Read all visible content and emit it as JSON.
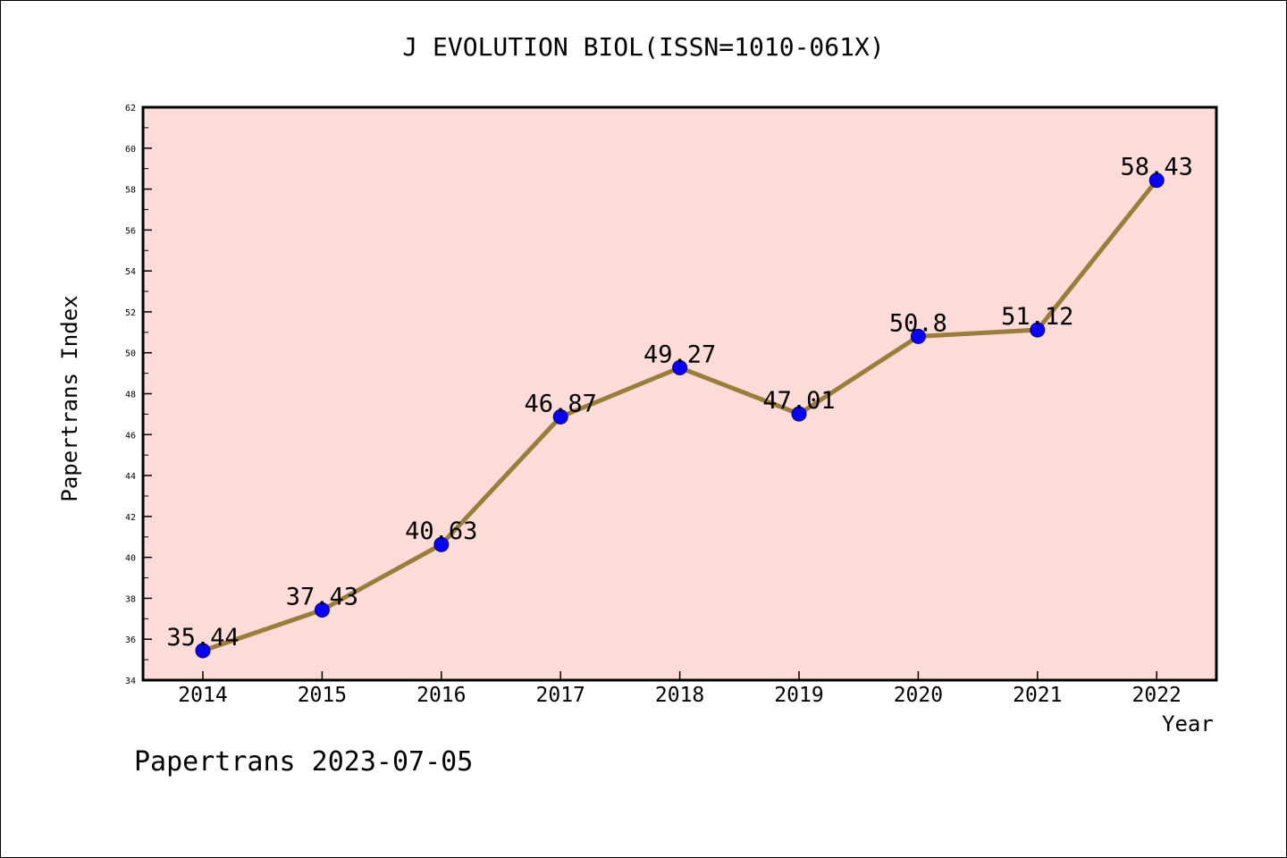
{
  "colors": {
    "plot_background": "#fddbd8",
    "line": "#9a7d3a",
    "marker": "#0a00f5",
    "axis": "#000000"
  },
  "chart_data": {
    "type": "line",
    "title": "J EVOLUTION BIOL(ISSN=1010-061X)",
    "xlabel": "Year",
    "ylabel": "Papertrans Index",
    "categories": [
      "2014",
      "2015",
      "2016",
      "2017",
      "2018",
      "2019",
      "2020",
      "2021",
      "2022"
    ],
    "series": [
      {
        "values": [
          35.44,
          37.43,
          40.63,
          46.87,
          49.27,
          47.01,
          50.8,
          51.12,
          58.43
        ],
        "labels": [
          "35.44",
          "37.43",
          "40.63",
          "46.87",
          "49.27",
          "47.01",
          "50.8",
          "51.12",
          "58.43"
        ]
      }
    ],
    "ylim": [
      34,
      62
    ],
    "yticks": [
      34,
      36,
      38,
      40,
      42,
      44,
      46,
      48,
      50,
      52,
      54,
      56,
      58,
      60,
      62
    ],
    "grid": false,
    "legend": "none"
  },
  "footer": {
    "note": "Papertrans 2023-07-05"
  }
}
